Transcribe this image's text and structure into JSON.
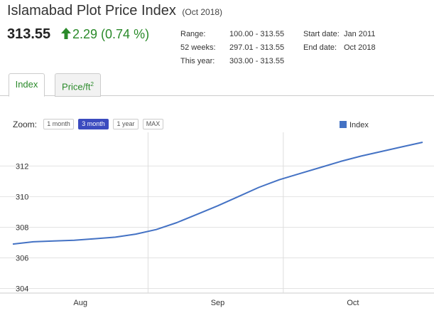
{
  "header": {
    "title": "Islamabad Plot Price Index",
    "period": "(Oct 2018)"
  },
  "summary": {
    "price": "313.55",
    "change": "2.29 (0.74 %)",
    "change_direction": "up",
    "change_color": "#2a8a2a"
  },
  "stats": {
    "range_label": "Range:",
    "range_value": "100.00 - 313.55",
    "weeks52_label": "52 weeks:",
    "weeks52_value": "297.01 - 313.55",
    "year_label": "This year:",
    "year_value": "303.00 - 313.55",
    "start_label": "Start date:",
    "start_value": "Jan 2011",
    "end_label": "End date:",
    "end_value": "Oct 2018"
  },
  "tabs": [
    {
      "label": "Index",
      "active": true
    },
    {
      "label": "Price/ft",
      "sup": "2",
      "active": false
    }
  ],
  "zoom": {
    "label": "Zoom:",
    "options": [
      "1 month",
      "3 month",
      "1 year",
      "MAX"
    ],
    "selected": "3 month",
    "selected_color": "#3b4bbf"
  },
  "chart_data": {
    "type": "line",
    "series": [
      {
        "name": "Index",
        "color": "#4472c4",
        "points": [
          [
            0,
            306.9
          ],
          [
            0.05,
            307.05
          ],
          [
            0.1,
            307.1
          ],
          [
            0.15,
            307.15
          ],
          [
            0.2,
            307.25
          ],
          [
            0.25,
            307.35
          ],
          [
            0.3,
            307.55
          ],
          [
            0.35,
            307.85
          ],
          [
            0.4,
            308.3
          ],
          [
            0.45,
            308.85
          ],
          [
            0.5,
            309.4
          ],
          [
            0.55,
            310.0
          ],
          [
            0.6,
            310.6
          ],
          [
            0.65,
            311.1
          ],
          [
            0.7,
            311.5
          ],
          [
            0.75,
            311.9
          ],
          [
            0.8,
            312.3
          ],
          [
            0.85,
            312.65
          ],
          [
            0.9,
            312.95
          ],
          [
            0.95,
            313.25
          ],
          [
            1.0,
            313.55
          ]
        ]
      }
    ],
    "x_ticks": [
      {
        "label": "Aug",
        "x": 0.165
      },
      {
        "label": "Sep",
        "x": 0.5
      },
      {
        "label": "Oct",
        "x": 0.83
      }
    ],
    "x_dividers": [
      0.33,
      0.66
    ],
    "y_ticks": [
      304,
      306,
      308,
      310,
      312
    ],
    "ylim": [
      303.7,
      314.2
    ],
    "grid": true,
    "legend": "top-right"
  }
}
